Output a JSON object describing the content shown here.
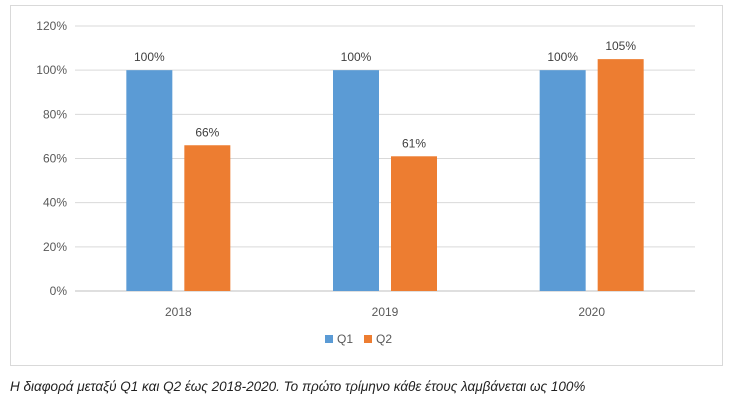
{
  "chart_data": {
    "type": "bar",
    "categories": [
      "2018",
      "2019",
      "2020"
    ],
    "series": [
      {
        "name": "Q1",
        "values": [
          100,
          100,
          100
        ],
        "color": "#5b9bd5",
        "labels": [
          "100%",
          "100%",
          "100%"
        ]
      },
      {
        "name": "Q2",
        "values": [
          66,
          61,
          105
        ],
        "color": "#ed7d31",
        "labels": [
          "66%",
          "61%",
          "105%"
        ]
      }
    ],
    "ylim": [
      0,
      120
    ],
    "yticks": [
      0,
      20,
      40,
      60,
      80,
      100,
      120
    ],
    "ytick_labels": [
      "0%",
      "20%",
      "40%",
      "60%",
      "80%",
      "100%",
      "120%"
    ],
    "grid": true,
    "legend_position": "bottom"
  },
  "caption": "Η διαφορά μεταξύ Q1 και Q2 έως 2018-2020. Το πρώτο τρίμηνο κάθε έτους λαμβάνεται ως 100%"
}
